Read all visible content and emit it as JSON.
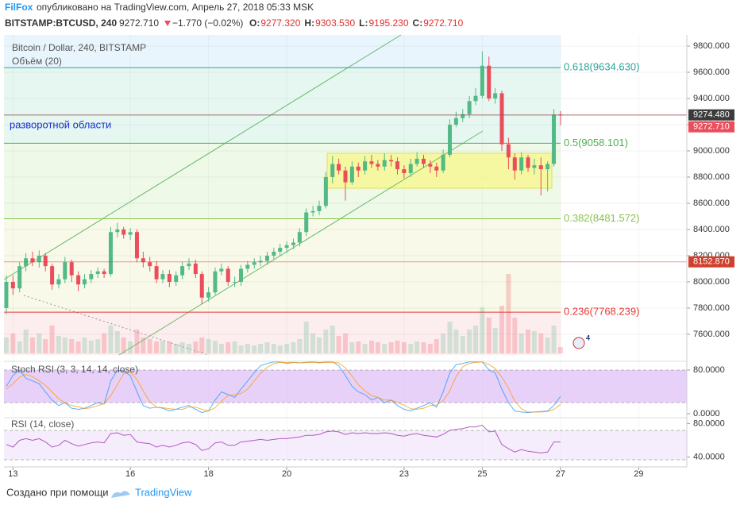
{
  "header": {
    "author": "FilFox",
    "published": "опубликовано на TradingView.com, Апрель 27, 2018 05:33 MSK",
    "symbol": "BITSTAMP:BTCUSD, 240",
    "last": "9272.710",
    "change": "−1.770 (−0.02%)",
    "ohlc": [
      {
        "key": "O:",
        "value": "9277.320"
      },
      {
        "key": "H:",
        "value": "9303.530"
      },
      {
        "key": "L:",
        "value": "9195.230"
      },
      {
        "key": "C:",
        "value": "9272.710"
      }
    ]
  },
  "footer": {
    "created": "Создано при помощи",
    "brand": "TradingView"
  },
  "chart_data": {
    "type": "candlestick",
    "title": "Bitcoin / Dollar, 240, BITSTAMP",
    "volume_label": "Объём (20)",
    "annotation": "разворотной области",
    "badge": "4",
    "up_color": "#53b987",
    "down_color": "#eb4d5c",
    "x": [
      12.83,
      13,
      13.17,
      13.33,
      13.5,
      13.67,
      13.83,
      14,
      14.17,
      14.33,
      14.5,
      14.67,
      14.83,
      15,
      15.17,
      15.33,
      15.5,
      15.67,
      15.83,
      16,
      16.17,
      16.33,
      16.5,
      16.67,
      16.83,
      17,
      17.17,
      17.33,
      17.5,
      17.67,
      17.83,
      18,
      18.17,
      18.33,
      18.5,
      18.67,
      18.83,
      19,
      19.17,
      19.33,
      19.5,
      19.67,
      19.83,
      20,
      20.17,
      20.33,
      20.5,
      20.67,
      20.83,
      21,
      21.17,
      21.33,
      21.5,
      21.67,
      21.83,
      22,
      22.17,
      22.33,
      22.5,
      22.67,
      22.83,
      23,
      23.17,
      23.33,
      23.5,
      23.67,
      23.83,
      24,
      24.17,
      24.33,
      24.5,
      24.67,
      24.83,
      25,
      25.17,
      25.33,
      25.5,
      25.67,
      25.83,
      26,
      26.17,
      26.33,
      26.5,
      26.67,
      26.83,
      27
    ],
    "open": [
      7800,
      8000,
      7950,
      8120,
      8180,
      8150,
      8200,
      8120,
      7980,
      8020,
      8150,
      8050,
      7980,
      8020,
      8060,
      8080,
      8060,
      8380,
      8400,
      8360,
      8380,
      8180,
      8150,
      8120,
      8020,
      8060,
      8000,
      8050,
      8120,
      8140,
      8060,
      7880,
      7920,
      8080,
      8100,
      8000,
      8000,
      8100,
      8130,
      8150,
      8160,
      8200,
      8230,
      8260,
      8280,
      8300,
      8380,
      8530,
      8540,
      8580,
      8800,
      8900,
      8850,
      8760,
      8880,
      8850,
      8920,
      8900,
      8880,
      8930,
      8920,
      8860,
      8830,
      8900,
      8940,
      8900,
      8880,
      8850,
      8970,
      9200,
      9250,
      9280,
      9380,
      9420,
      9650,
      9400,
      9440,
      9050,
      8950,
      8850,
      8950,
      8870,
      8890,
      8860,
      8900,
      9277.32
    ],
    "high": [
      8050,
      8050,
      8150,
      8220,
      8230,
      8240,
      8220,
      8140,
      8060,
      8190,
      8170,
      8080,
      8060,
      8090,
      8110,
      8100,
      8420,
      8450,
      8420,
      8410,
      8400,
      8230,
      8190,
      8160,
      8090,
      8090,
      8080,
      8150,
      8180,
      8170,
      8080,
      7960,
      8110,
      8140,
      8120,
      8040,
      8130,
      8160,
      8180,
      8200,
      8230,
      8260,
      8290,
      8310,
      8330,
      8410,
      8560,
      8580,
      8620,
      8840,
      8960,
      8940,
      8880,
      8920,
      8910,
      8960,
      8970,
      8930,
      8980,
      8970,
      8950,
      8890,
      8940,
      8990,
      8970,
      8930,
      8910,
      9010,
      9240,
      9300,
      9320,
      9420,
      9480,
      9760,
      9720,
      9480,
      9460,
      9100,
      8980,
      8990,
      8970,
      8940,
      8950,
      8920,
      9320,
      9303.53
    ],
    "low": [
      7750,
      7900,
      7920,
      8080,
      8120,
      8110,
      8080,
      7940,
      7950,
      7990,
      8000,
      7930,
      7950,
      7990,
      8030,
      8030,
      8040,
      8340,
      8330,
      8320,
      8150,
      8110,
      8080,
      7990,
      7990,
      7960,
      7970,
      8020,
      8090,
      8030,
      7830,
      7850,
      7900,
      8050,
      7970,
      7960,
      7970,
      8070,
      8100,
      8120,
      8130,
      8170,
      8200,
      8220,
      8250,
      8270,
      8350,
      8500,
      8510,
      8560,
      8750,
      8820,
      8620,
      8740,
      8800,
      8820,
      8870,
      8850,
      8850,
      8880,
      8820,
      8790,
      8800,
      8880,
      8870,
      8830,
      8800,
      8830,
      8950,
      9180,
      9220,
      9250,
      9350,
      9400,
      9380,
      9360,
      9000,
      8860,
      8780,
      8820,
      8840,
      8820,
      8660,
      8690,
      8880,
      9195.23
    ],
    "close": [
      8000,
      7950,
      8120,
      8180,
      8150,
      8200,
      8120,
      7980,
      8020,
      8150,
      8050,
      7980,
      8020,
      8060,
      8080,
      8060,
      8380,
      8400,
      8360,
      8380,
      8180,
      8150,
      8120,
      8020,
      8060,
      8000,
      8050,
      8120,
      8140,
      8060,
      7880,
      7920,
      8080,
      8100,
      8000,
      8000,
      8100,
      8130,
      8150,
      8160,
      8200,
      8230,
      8260,
      8280,
      8300,
      8380,
      8530,
      8540,
      8580,
      8800,
      8900,
      8850,
      8760,
      8880,
      8850,
      8920,
      8900,
      8880,
      8930,
      8920,
      8860,
      8830,
      8900,
      8940,
      8900,
      8880,
      8850,
      8970,
      9200,
      9250,
      9280,
      9380,
      9420,
      9650,
      9400,
      9440,
      9050,
      8950,
      8850,
      8950,
      8870,
      8890,
      8860,
      8900,
      9277.32,
      9272.71
    ],
    "volume": [
      20,
      25,
      15,
      30,
      20,
      25,
      18,
      35,
      22,
      20,
      18,
      15,
      20,
      16,
      18,
      25,
      35,
      28,
      20,
      15,
      30,
      20,
      18,
      15,
      16,
      15,
      12,
      14,
      12,
      15,
      20,
      18,
      16,
      12,
      14,
      15,
      10,
      12,
      10,
      12,
      14,
      12,
      10,
      12,
      14,
      18,
      40,
      25,
      20,
      30,
      35,
      22,
      25,
      14,
      15,
      12,
      16,
      14,
      12,
      14,
      16,
      14,
      12,
      15,
      14,
      12,
      18,
      25,
      40,
      30,
      22,
      30,
      35,
      58,
      45,
      32,
      60,
      100,
      45,
      25,
      30,
      28,
      25,
      20,
      35,
      8
    ],
    "xlim": [
      12.77,
      30.23
    ],
    "xticks": [
      13,
      16,
      18,
      20,
      23,
      25,
      27,
      29
    ],
    "ylim": [
      7442,
      9885
    ],
    "yticks": [
      {
        "value": 7600,
        "label": "7600.000"
      },
      {
        "value": 7800,
        "label": "7800.000"
      },
      {
        "value": 8000,
        "label": "8000.000"
      },
      {
        "value": 8200,
        "label": "8200.000"
      },
      {
        "value": 8400,
        "label": "8400.000"
      },
      {
        "value": 8600,
        "label": "8600.000"
      },
      {
        "value": 8800,
        "label": "8800.000"
      },
      {
        "value": 9000,
        "label": "9000.000"
      },
      {
        "value": 9200,
        "label": "9200.000"
      },
      {
        "value": 9400,
        "label": "9400.000"
      },
      {
        "value": 9600,
        "label": "9600.000"
      },
      {
        "value": 9800,
        "label": "9800.000"
      }
    ],
    "fib_levels": [
      {
        "value": 9634.63,
        "label": "0.618(9634.630)",
        "color": "#26a69a"
      },
      {
        "value": 9058.101,
        "label": "0.5(9058.101)",
        "color": "#4caf50"
      },
      {
        "value": 8481.572,
        "label": "0.382(8481.572)",
        "color": "#8bc34a"
      },
      {
        "value": 7768.239,
        "label": "0.236(7768.239)",
        "color": "#e53935"
      }
    ],
    "price_tags": [
      {
        "value": 9274.48,
        "label": "9274.480",
        "color": "#3b3b3b"
      },
      {
        "value": 9272.71,
        "label": "9272.710",
        "color": "#eb4d5c"
      },
      {
        "value": 8152.87,
        "label": "8152.870",
        "color": "#d0402e"
      }
    ],
    "indicators": [
      {
        "title": "Stoch RSI (3, 3, 14, 14, close)",
        "ylim": [
          -4.4,
          91.6
        ],
        "yticks": [
          {
            "value": 80,
            "label": "80.0000"
          },
          {
            "value": 0,
            "label": "0.0000"
          }
        ],
        "series": [
          {
            "color": "#2196f3",
            "values": [
              50,
              70,
              80,
              65,
              60,
              55,
              40,
              25,
              15,
              20,
              10,
              8,
              10,
              15,
              20,
              18,
              60,
              80,
              78,
              70,
              40,
              15,
              10,
              12,
              10,
              5,
              8,
              12,
              15,
              8,
              2,
              5,
              25,
              40,
              35,
              30,
              45,
              60,
              75,
              88,
              92,
              95,
              95,
              92,
              94,
              93,
              94,
              95,
              93,
              95,
              95,
              88,
              70,
              50,
              40,
              35,
              25,
              30,
              20,
              25,
              15,
              8,
              5,
              10,
              15,
              20,
              12,
              40,
              75,
              90,
              92,
              95,
              95,
              95,
              80,
              75,
              45,
              20,
              5,
              3,
              2,
              3,
              4,
              5,
              15,
              32
            ]
          },
          {
            "color": "#ff9800",
            "values": [
              45,
              55,
              67,
              72,
              68,
              60,
              52,
              40,
              27,
              20,
              15,
              13,
              9,
              11,
              15,
              18,
              33,
              53,
              73,
              76,
              63,
              42,
              22,
              12,
              11,
              9,
              8,
              8,
              12,
              12,
              8,
              5,
              11,
              23,
              33,
              35,
              37,
              45,
              60,
              74,
              85,
              92,
              94,
              94,
              94,
              93,
              94,
              94,
              94,
              94,
              94,
              93,
              84,
              69,
              53,
              42,
              33,
              30,
              25,
              25,
              20,
              16,
              9,
              8,
              10,
              15,
              16,
              24,
              42,
              68,
              86,
              92,
              94,
              95,
              90,
              83,
              67,
              47,
              23,
              9,
              3,
              3,
              3,
              4,
              8,
              17
            ]
          }
        ]
      },
      {
        "title": "RSI (14, close)",
        "ylim": [
          34,
          86
        ],
        "yticks": [
          {
            "value": 80,
            "label": "80.0000"
          },
          {
            "value": 40,
            "label": "40.0000"
          }
        ],
        "series": [
          {
            "color": "#9c27b0",
            "values": [
              55,
              52,
              60,
              62,
              60,
              62,
              58,
              52,
              54,
              60,
              56,
              53,
              55,
              57,
              58,
              57,
              68,
              69,
              66,
              67,
              58,
              57,
              56,
              52,
              54,
              52,
              54,
              57,
              58,
              55,
              48,
              50,
              57,
              58,
              54,
              54,
              58,
              59,
              60,
              61,
              60,
              61,
              62,
              62,
              63,
              64,
              66,
              66,
              67,
              70,
              71,
              70,
              67,
              69,
              68,
              69,
              68,
              68,
              69,
              68,
              66,
              65,
              67,
              68,
              66,
              65,
              64,
              67,
              72,
              73,
              74,
              76,
              76,
              78,
              70,
              71,
              55,
              50,
              46,
              49,
              47,
              46,
              45,
              46,
              58,
              58
            ]
          }
        ]
      }
    ]
  }
}
